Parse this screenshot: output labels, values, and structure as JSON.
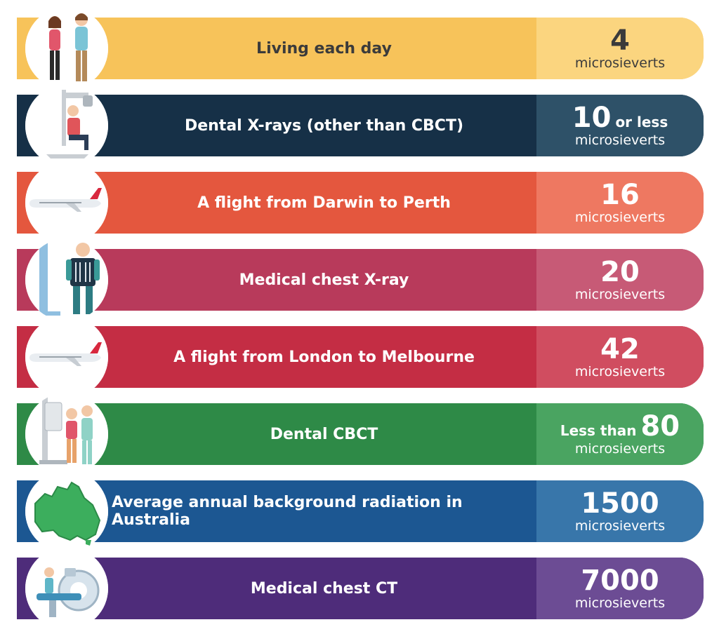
{
  "rows": [
    {
      "label": "Living each day",
      "pre": "",
      "value": "4",
      "post": "",
      "unit": "microsieverts",
      "icon": "two-people-icon",
      "main_color": "#f7c35a",
      "value_color": "#fbd57f",
      "text_color": "#3b3b3b"
    },
    {
      "label": "Dental X-rays (other than CBCT)",
      "pre": "",
      "value": "10",
      "post": "or less",
      "unit": "microsieverts",
      "icon": "dental-xray-icon",
      "main_color": "#163047",
      "value_color": "#2e5168",
      "text_color": "#ffffff"
    },
    {
      "label": "A flight from Darwin to Perth",
      "pre": "",
      "value": "16",
      "post": "",
      "unit": "microsieverts",
      "icon": "airplane-icon",
      "main_color": "#e4573e",
      "value_color": "#ee7861",
      "text_color": "#ffffff"
    },
    {
      "label": "Medical chest X-ray",
      "pre": "",
      "value": "20",
      "post": "",
      "unit": "microsieverts",
      "icon": "chest-xray-icon",
      "main_color": "#b83a5b",
      "value_color": "#c75a76",
      "text_color": "#ffffff"
    },
    {
      "label": "A flight from London to Melbourne",
      "pre": "",
      "value": "42",
      "post": "",
      "unit": "microsieverts",
      "icon": "airplane-icon",
      "main_color": "#c42d44",
      "value_color": "#d04d60",
      "text_color": "#ffffff"
    },
    {
      "label": "Dental CBCT",
      "pre": "Less than",
      "value": "80",
      "post": "",
      "unit": "microsieverts",
      "icon": "dental-cbct-icon",
      "main_color": "#2e8a47",
      "value_color": "#4aa461",
      "text_color": "#ffffff"
    },
    {
      "label": "Average annual background radiation in Australia",
      "pre": "",
      "value": "1500",
      "post": "",
      "unit": "microsieverts",
      "icon": "australia-map-icon",
      "main_color": "#1c5792",
      "value_color": "#3876aa",
      "text_color": "#ffffff"
    },
    {
      "label": "Medical chest CT",
      "pre": "",
      "value": "7000",
      "post": "",
      "unit": "microsieverts",
      "icon": "ct-scanner-icon",
      "main_color": "#4e2c7a",
      "value_color": "#6c4c94",
      "text_color": "#ffffff"
    }
  ]
}
